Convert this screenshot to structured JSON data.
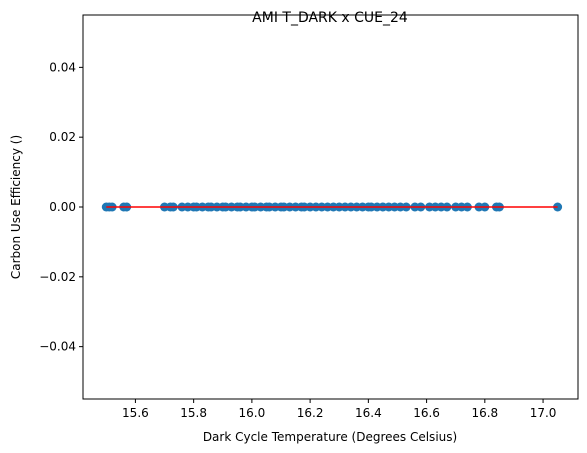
{
  "chart_data": {
    "type": "scatter",
    "title": "AMI T_DARK x CUE_24",
    "xlabel": "Dark Cycle Temperature (Degrees Celsius)",
    "ylabel": "Carbon Use Efficiency ()",
    "xlim": [
      15.42,
      17.12
    ],
    "ylim": [
      -0.055,
      0.055
    ],
    "xticks": [
      15.6,
      15.8,
      16.0,
      16.2,
      16.4,
      16.6,
      16.8,
      17.0
    ],
    "xtick_labels": [
      "15.6",
      "15.8",
      "16.0",
      "16.2",
      "16.4",
      "16.6",
      "16.8",
      "17.0"
    ],
    "yticks": [
      -0.04,
      -0.02,
      0.0,
      0.02,
      0.04
    ],
    "ytick_labels": [
      "−0.04",
      "−0.02",
      "0.00",
      "0.02",
      "0.04"
    ],
    "grid": false,
    "point_color": "#1f77b4",
    "line_color": "#ff0000",
    "series": [
      {
        "values": [
          [
            15.5,
            0
          ],
          [
            15.51,
            0
          ],
          [
            15.52,
            0
          ],
          [
            15.56,
            0
          ],
          [
            15.57,
            0
          ],
          [
            15.7,
            0
          ],
          [
            15.72,
            0
          ],
          [
            15.73,
            0
          ],
          [
            15.76,
            0
          ],
          [
            15.78,
            0
          ],
          [
            15.8,
            0
          ],
          [
            15.81,
            0
          ],
          [
            15.83,
            0
          ],
          [
            15.85,
            0
          ],
          [
            15.86,
            0
          ],
          [
            15.88,
            0
          ],
          [
            15.9,
            0
          ],
          [
            15.91,
            0
          ],
          [
            15.93,
            0
          ],
          [
            15.95,
            0
          ],
          [
            15.96,
            0
          ],
          [
            15.98,
            0
          ],
          [
            16.0,
            0
          ],
          [
            16.01,
            0
          ],
          [
            16.03,
            0
          ],
          [
            16.05,
            0
          ],
          [
            16.06,
            0
          ],
          [
            16.08,
            0
          ],
          [
            16.1,
            0
          ],
          [
            16.11,
            0
          ],
          [
            16.13,
            0
          ],
          [
            16.15,
            0
          ],
          [
            16.17,
            0
          ],
          [
            16.18,
            0
          ],
          [
            16.2,
            0
          ],
          [
            16.22,
            0
          ],
          [
            16.24,
            0
          ],
          [
            16.26,
            0
          ],
          [
            16.28,
            0
          ],
          [
            16.3,
            0
          ],
          [
            16.32,
            0
          ],
          [
            16.34,
            0
          ],
          [
            16.36,
            0
          ],
          [
            16.38,
            0
          ],
          [
            16.4,
            0
          ],
          [
            16.41,
            0
          ],
          [
            16.43,
            0
          ],
          [
            16.45,
            0
          ],
          [
            16.47,
            0
          ],
          [
            16.49,
            0
          ],
          [
            16.51,
            0
          ],
          [
            16.53,
            0
          ],
          [
            16.56,
            0
          ],
          [
            16.58,
            0
          ],
          [
            16.61,
            0
          ],
          [
            16.63,
            0
          ],
          [
            16.65,
            0
          ],
          [
            16.67,
            0
          ],
          [
            16.7,
            0
          ],
          [
            16.72,
            0
          ],
          [
            16.74,
            0
          ],
          [
            16.78,
            0
          ],
          [
            16.8,
            0
          ],
          [
            16.84,
            0
          ],
          [
            16.85,
            0
          ],
          [
            17.05,
            0
          ]
        ]
      }
    ],
    "fit_line": {
      "x": [
        15.5,
        17.05
      ],
      "y": [
        0,
        0
      ]
    }
  }
}
